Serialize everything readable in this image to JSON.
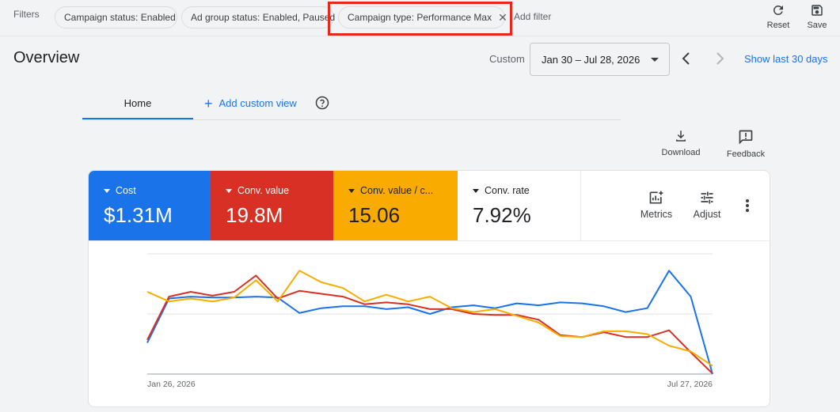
{
  "filters": {
    "label": "Filters",
    "chips": [
      {
        "label": "Campaign status: Enabled"
      },
      {
        "label": "Ad group status: Enabled, Paused"
      },
      {
        "label": "Campaign type: Performance Max"
      }
    ],
    "add_filter": "Add filter"
  },
  "toolbar": {
    "reset_label": "Reset",
    "save_label": "Save"
  },
  "overview": {
    "title": "Overview",
    "custom_label": "Custom",
    "date_range": "Jan 30 – Jul 28, 2026",
    "show_last": "Show last 30 days"
  },
  "tabs": {
    "home": "Home",
    "add_custom_view": "Add custom view"
  },
  "actions": {
    "download": "Download",
    "feedback": "Feedback"
  },
  "metrics": [
    {
      "name": "Cost",
      "value": "$1.31M",
      "color": "#1a73e8"
    },
    {
      "name": "Conv. value",
      "value": "19.8M",
      "color": "#d93025"
    },
    {
      "name": "Conv. value / c...",
      "value": "15.06",
      "color": "#f9ab00"
    },
    {
      "name": "Conv. rate",
      "value": "7.92%",
      "color": "#ffffff"
    }
  ],
  "card_tools": {
    "metrics_label": "Metrics",
    "adjust_label": "Adjust"
  },
  "chart_data": {
    "type": "line",
    "x_start_label": "Jan 26, 2026",
    "x_end_label": "Jul 27, 2026",
    "y_scale": "normalized per series (no visible axis values)",
    "grid": "horizontal",
    "series": [
      {
        "color": "#1a73e8",
        "values": [
          20,
          66,
          68,
          67,
          67,
          68,
          67,
          51,
          56,
          58,
          58,
          55,
          57,
          50,
          57,
          59,
          56,
          61,
          59,
          62,
          61,
          58,
          52,
          56,
          95,
          68,
          -32
        ]
      },
      {
        "color": "#d93025",
        "values": [
          23,
          68,
          73,
          69,
          73,
          90,
          66,
          74,
          71,
          68,
          60,
          62,
          60,
          55,
          55,
          50,
          49,
          49,
          44,
          28,
          26,
          31,
          26,
          26,
          33,
          10,
          -12
        ]
      },
      {
        "color": "#f9ab00",
        "values": [
          73,
          63,
          66,
          63,
          67,
          85,
          63,
          95,
          83,
          77,
          63,
          70,
          63,
          68,
          56,
          52,
          55,
          48,
          41,
          27,
          26,
          32,
          32,
          29,
          17,
          11,
          -4
        ]
      }
    ]
  }
}
